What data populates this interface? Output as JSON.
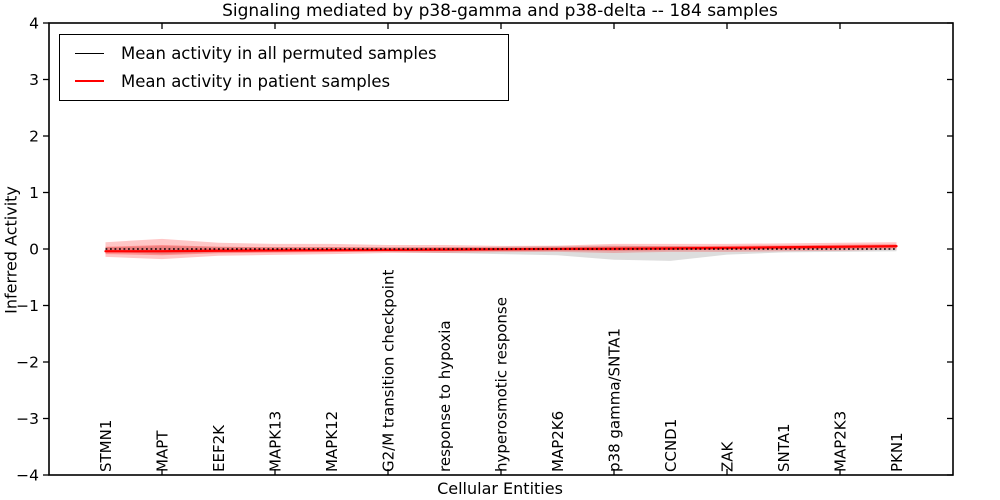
{
  "figure": {
    "background": "#ffffff",
    "frame_color": "#000000"
  },
  "chart_data": {
    "type": "line",
    "title": "Signaling mediated by p38-gamma and p38-delta -- 184 samples",
    "xlabel": "Cellular Entities",
    "ylabel": "Inferred Activity",
    "ylim": [
      -4,
      4
    ],
    "yticks": [
      4,
      3,
      2,
      1,
      0,
      -1,
      -2,
      -3,
      -4
    ],
    "grid": false,
    "legend_position": "upper left",
    "categories": [
      "STMN1",
      "MAPT",
      "EEF2K",
      "MAPK13",
      "MAPK12",
      "G2/M transition checkpoint",
      "response to hypoxia",
      "hyperosmotic response",
      "MAP2K6",
      "p38 gamma/SNTA1",
      "CCND1",
      "ZAK",
      "SNTA1",
      "MAP2K3",
      "PKN1"
    ],
    "top_tick_indices": [
      1,
      3,
      5,
      7,
      9,
      11,
      13
    ],
    "series": [
      {
        "name": "Mean activity in all permuted samples",
        "color": "#000000",
        "linestyle": "dotted",
        "values": [
          0,
          0,
          0,
          0,
          0,
          0,
          0,
          0,
          0,
          0,
          0,
          0,
          0,
          0,
          0
        ]
      },
      {
        "name": "Mean activity in patient samples",
        "color": "#ff0000",
        "linestyle": "solid",
        "values": [
          -0.04,
          -0.04,
          -0.03,
          -0.025,
          -0.02,
          -0.015,
          -0.01,
          -0.005,
          0.0,
          0.005,
          0.01,
          0.02,
          0.03,
          0.04,
          0.05
        ]
      }
    ],
    "bands": [
      {
        "name": "permuted-samples-std-band",
        "color": "#787878",
        "opacity": 0.25,
        "upper": [
          0.03,
          0.05,
          0.04,
          0.03,
          0.03,
          0.03,
          0.03,
          0.04,
          0.05,
          0.06,
          0.05,
          0.04,
          0.03,
          0.03,
          0.03
        ],
        "lower": [
          -0.05,
          -0.09,
          -0.06,
          -0.05,
          -0.04,
          -0.05,
          -0.07,
          -0.09,
          -0.11,
          -0.19,
          -0.21,
          -0.1,
          -0.06,
          -0.05,
          -0.04
        ]
      },
      {
        "name": "patient-samples-std-band",
        "color": "#ff0000",
        "opacity": 0.22,
        "upper": [
          0.12,
          0.18,
          0.11,
          0.09,
          0.09,
          0.07,
          0.07,
          0.055,
          0.06,
          0.09,
          0.09,
          0.09,
          0.1,
          0.11,
          0.12
        ],
        "lower": [
          -0.14,
          -0.18,
          -0.12,
          -0.105,
          -0.09,
          -0.07,
          -0.07,
          -0.055,
          -0.05,
          -0.07,
          -0.05,
          -0.05,
          -0.04,
          -0.03,
          -0.01
        ]
      }
    ]
  }
}
